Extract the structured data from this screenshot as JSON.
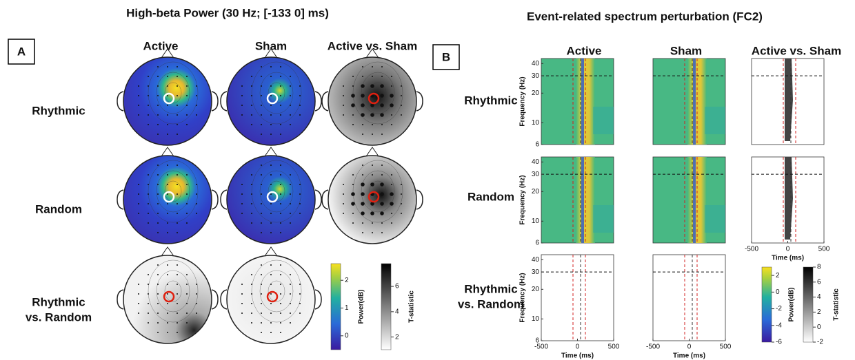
{
  "panel_a": {
    "label": "A",
    "title": "High-beta Power (30 Hz; [-133 0] ms)",
    "columns": [
      "Active",
      "Sham",
      "Active vs. Sham"
    ],
    "rows": [
      [
        "Rhythmic"
      ],
      [
        "Random"
      ],
      [
        "Rhythmic",
        "vs. Random"
      ]
    ],
    "power_colorbar": {
      "label": "Power(dB)",
      "lim": [
        -0.5,
        2.6
      ],
      "ticks": [
        0,
        1,
        2
      ]
    },
    "t_colorbar": {
      "label": "T-statistic",
      "lim": [
        1,
        7.8
      ],
      "ticks": [
        2,
        4,
        6
      ]
    }
  },
  "panel_b": {
    "label": "B",
    "title": "Event-related spectrum perturbation (FC2)",
    "columns": [
      "Active",
      "Sham",
      "Active vs. Sham"
    ],
    "rows": [
      [
        "Rhythmic"
      ],
      [
        "Random"
      ],
      [
        "Rhythmic",
        "vs. Random"
      ]
    ],
    "y_label": "Frequency (Hz)",
    "ylim": [
      6,
      45
    ],
    "yticks": [
      6,
      10,
      20,
      30,
      40
    ],
    "log_y": true,
    "x_label": "Time (ms)",
    "xlim": [
      -500,
      500
    ],
    "xticks": [
      -500,
      0,
      500
    ],
    "power_colorbar": {
      "label": "Power(dB)",
      "lim": [
        -6,
        3
      ],
      "ticks": [
        -6,
        -4,
        -2,
        0,
        2
      ]
    },
    "t_colorbar": {
      "label": "T-statistic",
      "lim": [
        -2,
        8
      ],
      "ticks": [
        -2,
        0,
        2,
        4,
        6,
        8
      ]
    }
  }
}
